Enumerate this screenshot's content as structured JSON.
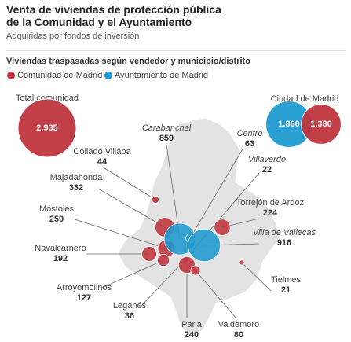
{
  "header": {
    "title_lines": [
      "Venta de viviendas de protección pública",
      "de la Comunidad y el Ayuntamiento"
    ],
    "subtitle": "Adquiridas por fondos de inversión"
  },
  "map": {
    "heading": "Viviendas traspasadas según vendedor y municipio/distrito",
    "legend": [
      {
        "name": "Comunidad de Madrid",
        "color": "#c0353f"
      },
      {
        "name": "Ayuntamiento de Madrid",
        "color": "#1f9ad0"
      }
    ],
    "totals": [
      {
        "label": "Total comunidad",
        "values": [
          2935
        ],
        "value_labels": [
          "2.935"
        ],
        "colors": [
          "#c0353f"
        ]
      },
      {
        "label": "Ciudad de Madrid",
        "values": [
          1860,
          1380
        ],
        "value_labels": [
          "1.860",
          "1.380"
        ],
        "colors": [
          "#1f9ad0",
          "#c0353f"
        ]
      }
    ],
    "municipalities": [
      {
        "name": "Collado Villaba",
        "value": 44,
        "color": "#c0353f"
      },
      {
        "name": "Majadahonda",
        "value": 332,
        "color": "#c0353f"
      },
      {
        "name": "Móstoles",
        "value": 259,
        "color": "#c0353f"
      },
      {
        "name": "Navalcarnero",
        "value": 192,
        "color": "#c0353f"
      },
      {
        "name": "Arroyomolinos",
        "value": 127,
        "color": "#c0353f"
      },
      {
        "name": "Leganés",
        "value": 36,
        "color": "#c0353f"
      },
      {
        "name": "Parla",
        "value": 240,
        "color": "#c0353f"
      },
      {
        "name": "Valdemoro",
        "value": 80,
        "color": "#c0353f"
      },
      {
        "name": "Tielmes",
        "value": 21,
        "color": "#c0353f"
      },
      {
        "name": "Torrejón de Ardoz",
        "value": 224,
        "color": "#c0353f"
      }
    ],
    "districts": [
      {
        "name": "Carabanchel",
        "value": 859,
        "color": "#1f9ad0"
      },
      {
        "name": "Centro",
        "value": 63,
        "color": "#1f9ad0"
      },
      {
        "name": "Villaverde",
        "value": 22,
        "color": "#1f9ad0"
      },
      {
        "name": "Villa de Vallecas",
        "value": 916,
        "color": "#1f9ad0"
      }
    ]
  }
}
